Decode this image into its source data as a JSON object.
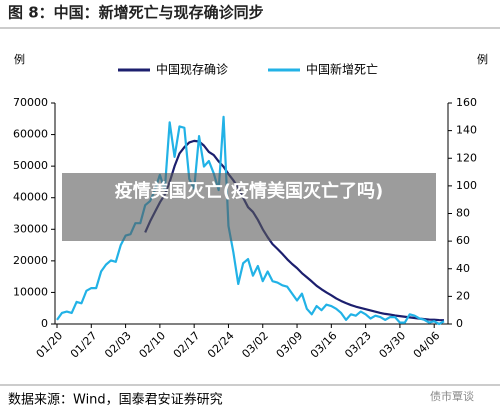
{
  "chart_data": {
    "type": "line",
    "title": "图 8：中国：新增死亡与现存确诊同步",
    "y_label": "例",
    "y2_label": "例",
    "source": "数据来源：Wind，国泰君安证券研究",
    "categories": [
      "01/20",
      null,
      null,
      null,
      null,
      null,
      null,
      "01/27",
      null,
      null,
      null,
      null,
      null,
      null,
      "02/03",
      null,
      null,
      null,
      null,
      null,
      null,
      "02/10",
      null,
      null,
      null,
      null,
      null,
      null,
      "02/17",
      null,
      null,
      null,
      null,
      null,
      null,
      "02/24",
      null,
      null,
      null,
      null,
      null,
      null,
      "03/02",
      null,
      null,
      null,
      null,
      null,
      null,
      "03/09",
      null,
      null,
      null,
      null,
      null,
      null,
      "03/16",
      null,
      null,
      null,
      null,
      null,
      null,
      "03/23",
      null,
      null,
      null,
      null,
      null,
      null,
      "03/30",
      null,
      null,
      null,
      null,
      null,
      null,
      "04/06",
      null,
      null
    ],
    "series": [
      {
        "name": "中国现存确诊",
        "color": "#1c1f6e",
        "axis": "y",
        "values": [
          null,
          null,
          null,
          null,
          null,
          null,
          null,
          null,
          null,
          null,
          null,
          null,
          null,
          null,
          null,
          null,
          null,
          null,
          29000,
          32500,
          35500,
          38500,
          41000,
          45000,
          50000,
          54000,
          56000,
          57500,
          58000,
          57800,
          56500,
          54500,
          53500,
          51500,
          49800,
          47500,
          45500,
          43200,
          40000,
          37000,
          35500,
          33000,
          30000,
          27500,
          25300,
          23800,
          22200,
          20500,
          19000,
          17700,
          16100,
          14800,
          13500,
          12100,
          11000,
          10000,
          9100,
          8100,
          7300,
          6600,
          6000,
          5500,
          5100,
          4700,
          4300,
          3900,
          3500,
          3200,
          3000,
          2700,
          2500,
          2300,
          2100,
          1900,
          1700,
          1550,
          1400,
          1350,
          1250,
          1200
        ]
      },
      {
        "name": "中国新增死亡",
        "color": "#22b2e6",
        "axis": "y2",
        "values": [
          3,
          8,
          9,
          8,
          16,
          15,
          24,
          26,
          26,
          38,
          43,
          46,
          45,
          57,
          64,
          65,
          73,
          73,
          86,
          89,
          97,
          108,
          97,
          146,
          121,
          143,
          142,
          105,
          98,
          136,
          114,
          118,
          109,
          97,
          150,
          71,
          52,
          29,
          44,
          47,
          35,
          42,
          31,
          38,
          31,
          30,
          28,
          27,
          22,
          17,
          22,
          11,
          7,
          13,
          10,
          14,
          13,
          11,
          8,
          3,
          7,
          6,
          9,
          7,
          4,
          6,
          5,
          3,
          5,
          5,
          1,
          1,
          7,
          6,
          4,
          3,
          1,
          2,
          0,
          2
        ]
      }
    ],
    "ylim": [
      0,
      70000
    ],
    "yticks": [
      0,
      10000,
      20000,
      30000,
      40000,
      50000,
      60000,
      70000
    ],
    "y2lim": [
      0,
      160
    ],
    "y2ticks": [
      0,
      20,
      40,
      60,
      80,
      100,
      120,
      140,
      160
    ],
    "grid": false
  },
  "overlay": {
    "text": "疫情美国灭亡(疫情美国灭亡了吗)"
  },
  "watermark": {
    "text": "债市覃谈"
  }
}
